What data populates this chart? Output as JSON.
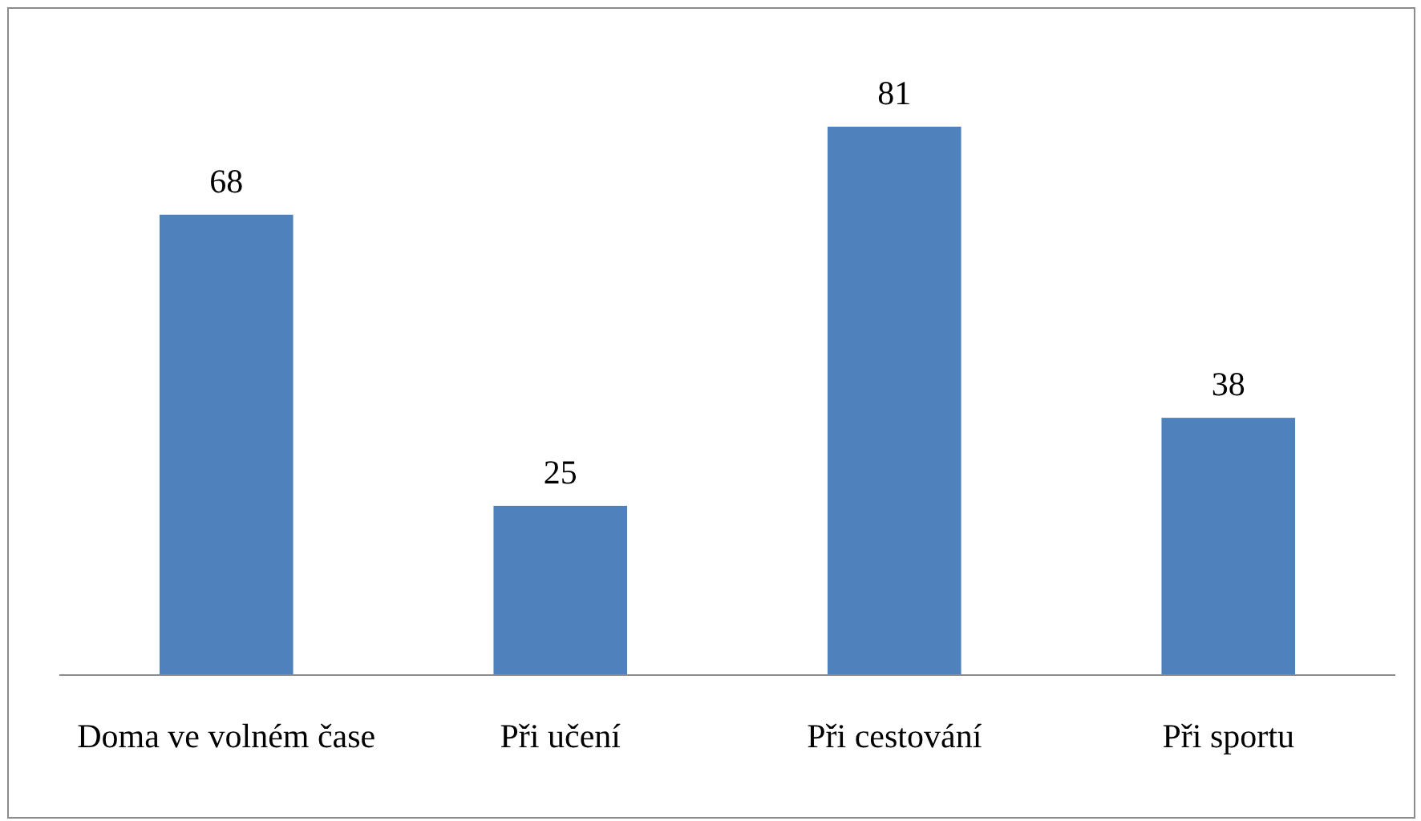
{
  "chart_data": {
    "type": "bar",
    "categories": [
      "Doma ve volném čase",
      "Při učení",
      "Při cestování",
      "Při sportu"
    ],
    "values": [
      68,
      25,
      81,
      38
    ],
    "color": "#4f81bd",
    "data_labels": true
  }
}
